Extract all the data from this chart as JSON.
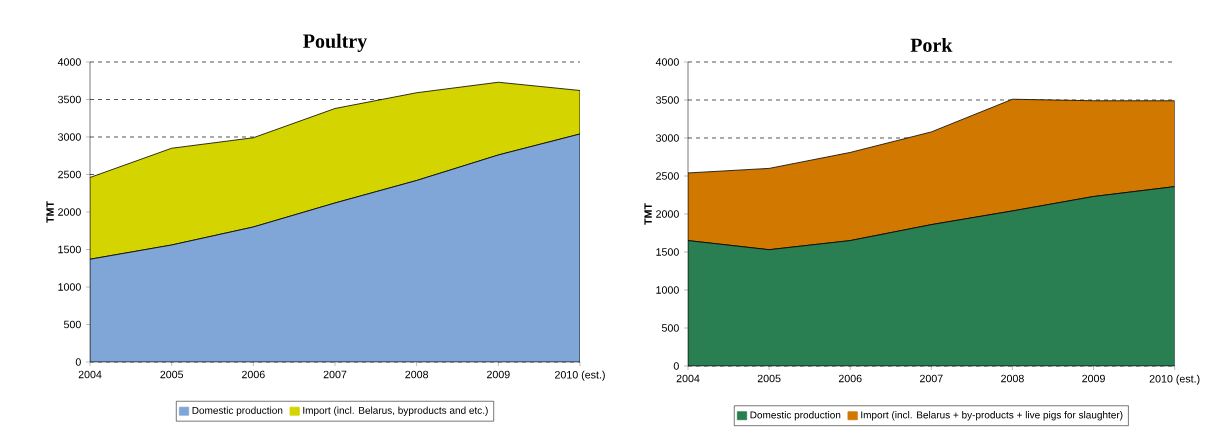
{
  "chart_data": [
    {
      "type": "area",
      "title": "Poultry",
      "ylabel": "TMT",
      "stacked": true,
      "categories": [
        "2004",
        "2005",
        "2006",
        "2007",
        "2008",
        "2009",
        "2010 (est.)"
      ],
      "series": [
        {
          "name": "Domestic production",
          "color": "#7fa6d6",
          "values": [
            1370,
            1560,
            1800,
            2120,
            2420,
            2760,
            3040
          ]
        },
        {
          "name": "Import (incl. Belarus, byproducts and etc.)",
          "color": "#d4d400",
          "values": [
            1090,
            1290,
            1190,
            1260,
            1170,
            970,
            580
          ]
        }
      ],
      "ylim": [
        0,
        4000
      ],
      "yticks": [
        0,
        500,
        1000,
        1500,
        2000,
        2500,
        3000,
        3500,
        4000
      ],
      "grid": "y",
      "legend": "bottom"
    },
    {
      "type": "area",
      "title": "Pork",
      "ylabel": "TMT",
      "stacked": true,
      "categories": [
        "2004",
        "2005",
        "2006",
        "2007",
        "2008",
        "2009",
        "2010 (est.)"
      ],
      "series": [
        {
          "name": "Domestic production",
          "color": "#2a7f52",
          "values": [
            1650,
            1530,
            1650,
            1860,
            2040,
            2230,
            2360
          ]
        },
        {
          "name": "Import (incl. Belarus + by-products + live pigs for slaughter)",
          "color": "#d07800",
          "values": [
            890,
            1070,
            1160,
            1220,
            1470,
            1260,
            1130
          ]
        }
      ],
      "ylim": [
        0,
        4000
      ],
      "yticks": [
        0,
        500,
        1000,
        1500,
        2000,
        2500,
        3000,
        3500,
        4000
      ],
      "grid": "y",
      "legend": "bottom"
    }
  ]
}
